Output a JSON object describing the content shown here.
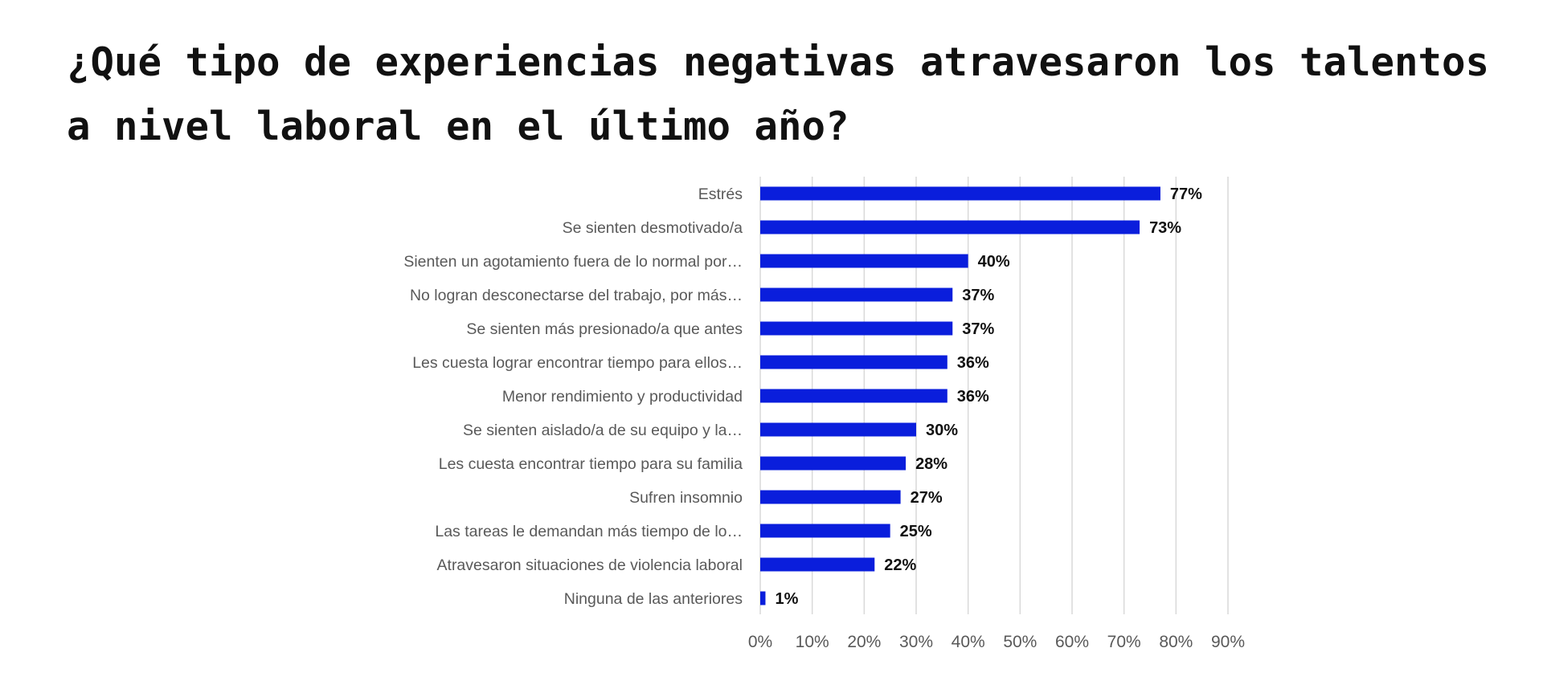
{
  "chart_data": {
    "type": "bar",
    "orientation": "horizontal",
    "title": "¿Qué tipo de experiencias negativas atravesaron los talentos a nivel laboral en el último año?",
    "title_lines": [
      "¿Qué tipo de experiencias negativas atravesaron los talentos",
      "a nivel laboral en el último año?"
    ],
    "categories": [
      "Estrés",
      "Se sienten desmotivado/a",
      "Sienten un agotamiento fuera de lo normal por…",
      "No logran desconectarse del trabajo, por más…",
      "Se sienten más presionado/a que antes",
      "Les cuesta lograr encontrar tiempo para ellos…",
      "Menor rendimiento y productividad",
      "Se sienten aislado/a de su equipo y la…",
      "Les cuesta encontrar tiempo para su familia",
      "Sufren insomnio",
      "Las tareas le demandan más tiempo de lo…",
      "Atravesaron situaciones de violencia laboral",
      "Ninguna de las anteriores"
    ],
    "values": [
      77,
      73,
      40,
      37,
      37,
      36,
      36,
      30,
      28,
      27,
      25,
      22,
      1
    ],
    "data_labels": [
      "77%",
      "73%",
      "40%",
      "37%",
      "37%",
      "36%",
      "36%",
      "30%",
      "28%",
      "27%",
      "25%",
      "22%",
      "1%"
    ],
    "xlim": [
      0,
      90
    ],
    "x_ticks": [
      "0%",
      "10%",
      "20%",
      "30%",
      "40%",
      "50%",
      "60%",
      "70%",
      "80%",
      "90%"
    ],
    "xlabel": "",
    "ylabel": "",
    "grid": "vertical",
    "legend": "none",
    "bar_color": "#0a1edc"
  }
}
